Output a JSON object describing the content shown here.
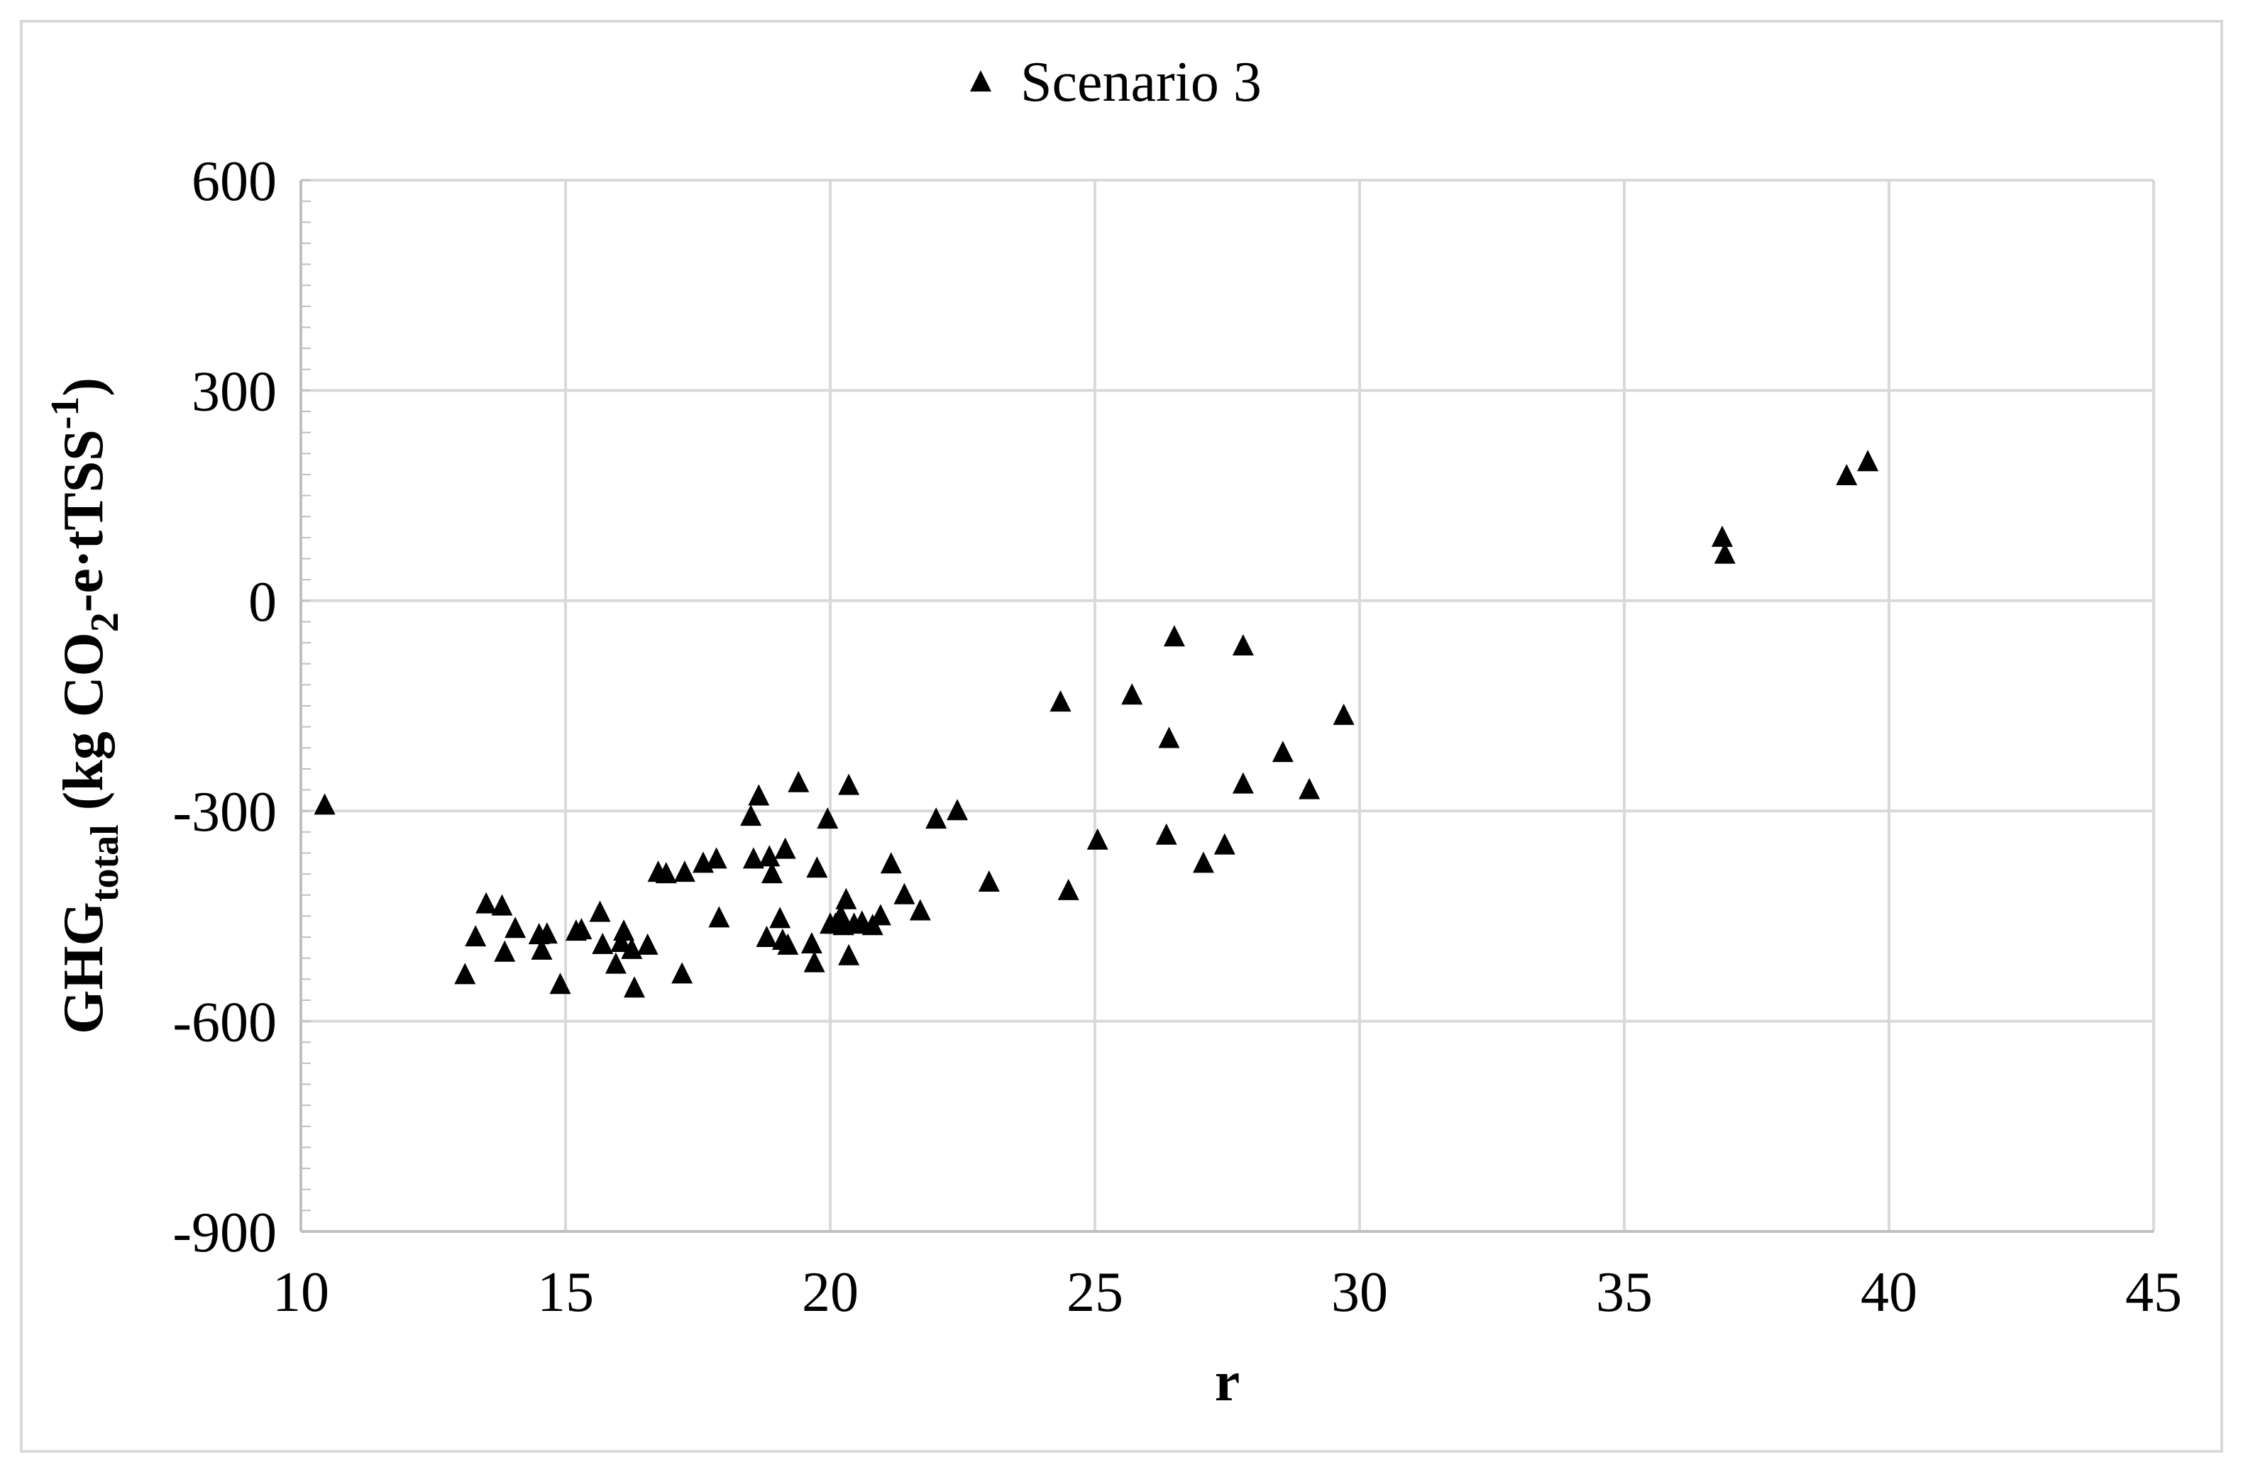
{
  "chart_data": {
    "type": "scatter",
    "legend": {
      "position": "top-center",
      "entries": [
        {
          "label": "Scenario 3",
          "marker": "triangle"
        }
      ]
    },
    "xlabel": "r",
    "ylabel": {
      "main": "GHG",
      "sub": "total",
      "unit_prefix": " (kg CO",
      "unit_sub": "2",
      "unit_mid": "-e·tTSS",
      "unit_sup": "-1",
      "unit_suffix": ")"
    },
    "xlim": [
      10,
      45
    ],
    "ylim": [
      -900,
      600
    ],
    "x_ticks": [
      10,
      15,
      20,
      25,
      30,
      35,
      40,
      45
    ],
    "y_ticks": [
      600,
      300,
      0,
      -300,
      -600,
      -900
    ],
    "x_tick_labels": [
      "10",
      "15",
      "20",
      "25",
      "30",
      "35",
      "40",
      "45"
    ],
    "y_tick_labels": [
      "600",
      "300",
      "0",
      "-300",
      "-600",
      "-900"
    ],
    "grid": true,
    "marker_color": "#000000",
    "grid_color": "#d9d9d9",
    "series": [
      {
        "name": "Scenario 3",
        "points": [
          [
            10.45,
            -290
          ],
          [
            13.1,
            -532
          ],
          [
            13.3,
            -478
          ],
          [
            13.5,
            -431
          ],
          [
            13.8,
            -434
          ],
          [
            13.85,
            -500
          ],
          [
            14.05,
            -466
          ],
          [
            14.5,
            -475
          ],
          [
            14.55,
            -497
          ],
          [
            14.65,
            -474
          ],
          [
            14.9,
            -546
          ],
          [
            15.2,
            -470
          ],
          [
            15.3,
            -468
          ],
          [
            15.65,
            -443
          ],
          [
            15.7,
            -489
          ],
          [
            15.95,
            -517
          ],
          [
            16.05,
            -486
          ],
          [
            16.1,
            -470
          ],
          [
            16.25,
            -496
          ],
          [
            16.3,
            -551
          ],
          [
            16.55,
            -490
          ],
          [
            16.75,
            -386
          ],
          [
            16.9,
            -388
          ],
          [
            17.2,
            -531
          ],
          [
            17.25,
            -386
          ],
          [
            17.6,
            -373
          ],
          [
            17.85,
            -367
          ],
          [
            17.9,
            -451
          ],
          [
            18.5,
            -306
          ],
          [
            18.55,
            -367
          ],
          [
            18.65,
            -277
          ],
          [
            18.8,
            -479
          ],
          [
            18.85,
            -364
          ],
          [
            18.9,
            -388
          ],
          [
            19.05,
            -452
          ],
          [
            19.1,
            -483
          ],
          [
            19.15,
            -353
          ],
          [
            19.2,
            -490
          ],
          [
            19.4,
            -258
          ],
          [
            19.65,
            -488
          ],
          [
            19.7,
            -515
          ],
          [
            19.75,
            -380
          ],
          [
            19.95,
            -310
          ],
          [
            20.0,
            -460
          ],
          [
            20.1,
            -460
          ],
          [
            20.2,
            -448
          ],
          [
            20.25,
            -462
          ],
          [
            20.3,
            -425
          ],
          [
            20.35,
            -505
          ],
          [
            20.35,
            -262
          ],
          [
            20.45,
            -460
          ],
          [
            20.6,
            -457
          ],
          [
            20.8,
            -462
          ],
          [
            20.95,
            -448
          ],
          [
            21.15,
            -374
          ],
          [
            21.4,
            -418
          ],
          [
            21.7,
            -441
          ],
          [
            22.0,
            -310
          ],
          [
            22.4,
            -298
          ],
          [
            23.0,
            -400
          ],
          [
            24.35,
            -143
          ],
          [
            24.5,
            -412
          ],
          [
            25.05,
            -340
          ],
          [
            25.7,
            -133
          ],
          [
            26.35,
            -333
          ],
          [
            26.4,
            -195
          ],
          [
            26.5,
            -50
          ],
          [
            27.05,
            -373
          ],
          [
            27.45,
            -347
          ],
          [
            27.8,
            -260
          ],
          [
            27.8,
            -63
          ],
          [
            28.55,
            -215
          ],
          [
            29.05,
            -268
          ],
          [
            29.7,
            -162
          ],
          [
            36.85,
            92
          ],
          [
            36.9,
            68
          ],
          [
            39.2,
            180
          ],
          [
            39.6,
            200
          ]
        ]
      }
    ]
  }
}
